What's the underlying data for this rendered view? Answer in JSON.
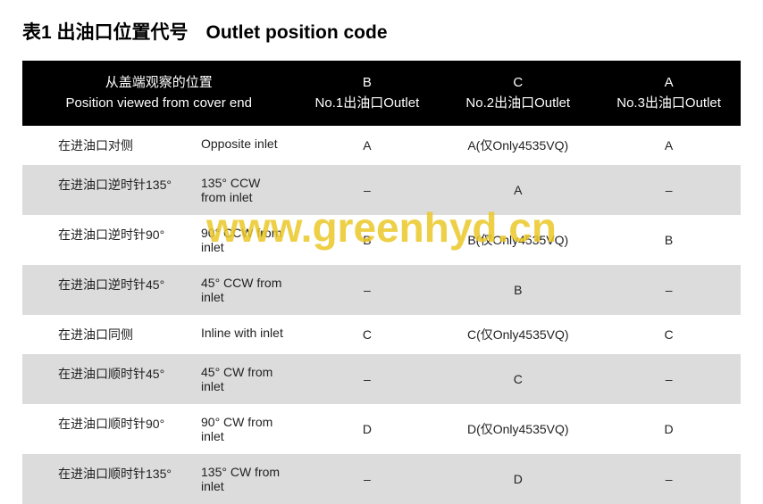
{
  "title": {
    "cn": "表1  出油口位置代号",
    "en": "Outlet position code"
  },
  "columns": [
    {
      "line1": "从盖端观察的位置",
      "line2": "Position viewed from cover end"
    },
    {
      "line1": "B",
      "line2": "No.1出油口Outlet"
    },
    {
      "line1": "C",
      "line2": "No.2出油口Outlet"
    },
    {
      "line1": "A",
      "line2": "No.3出油口Outlet"
    }
  ],
  "rows": [
    {
      "alt": false,
      "pos_cn": "在进油口对侧",
      "pos_en": "Opposite inlet",
      "b": "A",
      "c": "A(仅Only4535VQ)",
      "a": "A"
    },
    {
      "alt": true,
      "pos_cn": "在进油口逆时针135°",
      "pos_en": "135° CCW from inlet",
      "b": "–",
      "c": "A",
      "a": "–"
    },
    {
      "alt": false,
      "pos_cn": "在进油口逆时针90°",
      "pos_en": "90° CCW from inlet",
      "b": "B",
      "c": "B(仅Only4535VQ)",
      "a": "B"
    },
    {
      "alt": true,
      "pos_cn": "在进油口逆时针45°",
      "pos_en": "45° CCW from inlet",
      "b": "–",
      "c": "B",
      "a": "–"
    },
    {
      "alt": false,
      "pos_cn": "在进油口同侧",
      "pos_en": "Inline with inlet",
      "b": "C",
      "c": "C(仅Only4535VQ)",
      "a": "C"
    },
    {
      "alt": true,
      "pos_cn": "在进油口顺时针45°",
      "pos_en": "45° CW from inlet",
      "b": "–",
      "c": "C",
      "a": "–"
    },
    {
      "alt": false,
      "pos_cn": "在进油口顺时针90°",
      "pos_en": "90° CW from inlet",
      "b": "D",
      "c": "D(仅Only4535VQ)",
      "a": "D"
    },
    {
      "alt": true,
      "pos_cn": "在进油口顺时针135°",
      "pos_en": "135° CW from inlet",
      "b": "–",
      "c": "D",
      "a": "–"
    }
  ],
  "watermark": "www.greenhyd.cn",
  "colors": {
    "header_bg": "#000000",
    "header_fg": "#ffffff",
    "row_alt_bg": "#dcdcdc",
    "text": "#222222",
    "watermark": "rgba(235,200,40,0.85)"
  }
}
